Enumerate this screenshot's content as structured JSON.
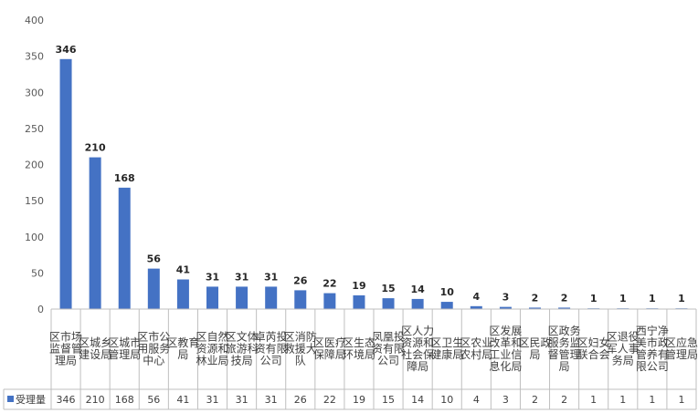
{
  "chart_data": {
    "type": "bar",
    "categories": [
      "区市场监督管理局",
      "区城乡建设局",
      "区城市管理局",
      "区市公用服务中心",
      "区教育局",
      "区自然资源和林业局",
      "区文体旅游科技局",
      "卓芮投资有限公司",
      "区消防救援大队",
      "区医疗保障局",
      "区生态环境局",
      "凤凰投资有限公司",
      "区人力资源和社会保障局",
      "区卫生健康局",
      "区农业农村局",
      "区发展改革和工业信息化局",
      "区民政局",
      "区政务服务监督管理局",
      "区妇女联合会",
      "区退役军人事务局",
      "西宁净美市政管养有限公司",
      "区应急管理局"
    ],
    "series": [
      {
        "name": "受理量",
        "values": [
          346,
          210,
          168,
          56,
          41,
          31,
          31,
          31,
          26,
          22,
          19,
          15,
          14,
          10,
          4,
          3,
          2,
          2,
          1,
          1,
          1,
          1
        ]
      }
    ],
    "ylim": [
      0,
      400
    ],
    "yticks": [
      "0",
      "50",
      "100",
      "150",
      "200",
      "250",
      "300",
      "350",
      "400"
    ],
    "data_table": true,
    "grid": false,
    "colors": {
      "bar": "#4472C4",
      "axis": "#bfbfbf",
      "table_line": "#bfbfbf"
    }
  }
}
